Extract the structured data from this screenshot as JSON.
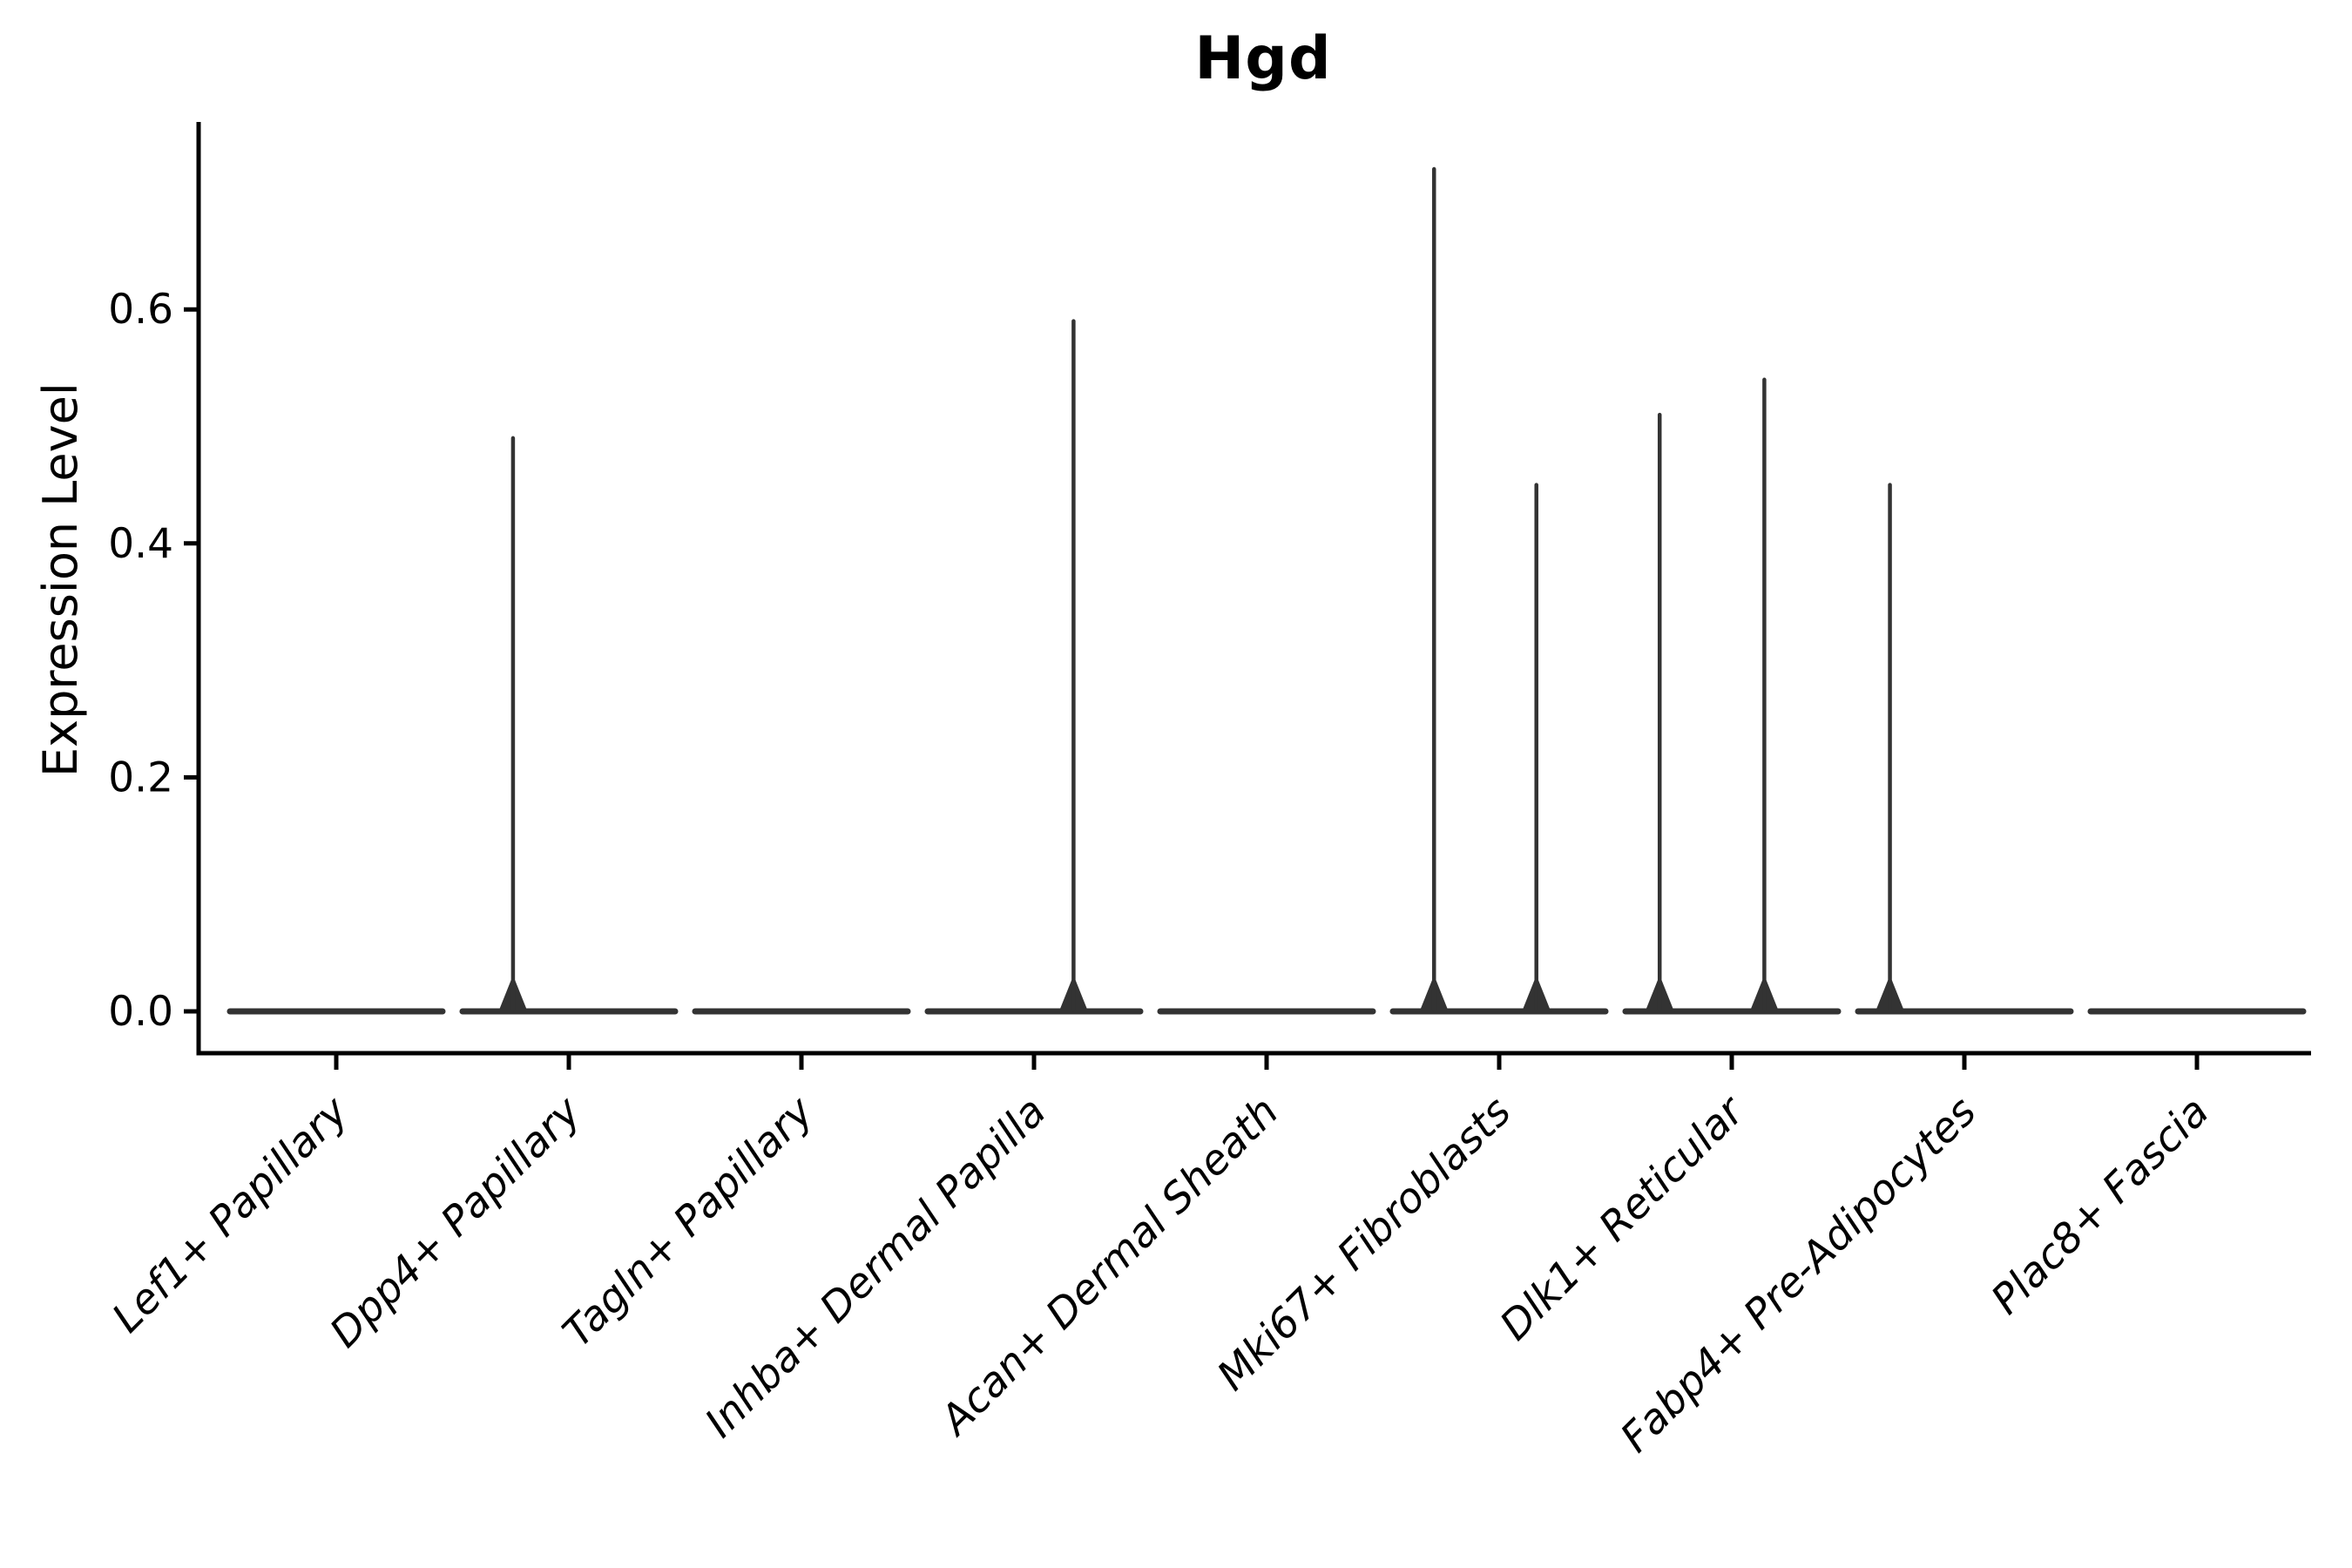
{
  "title": "Hgd",
  "y_axis": {
    "label": "Expression Level",
    "tick_labels": [
      "0.0",
      "0.2",
      "0.4",
      "0.6"
    ],
    "tick_values": [
      0.0,
      0.2,
      0.4,
      0.6
    ]
  },
  "colors": {
    "background": "#ffffff",
    "axis": "#000000",
    "text": "#000000",
    "violin": "#333333"
  },
  "chart_data": {
    "type": "violin",
    "title": "Hgd",
    "xlabel": "",
    "ylabel": "Expression Level",
    "ylim": [
      0.0,
      0.76
    ],
    "yticks": [
      0.0,
      0.2,
      0.4,
      0.6
    ],
    "grid": false,
    "legend": false,
    "categories": [
      "Lef1+ Papillary",
      "Dpp4+ Papillary",
      "Tagln+ Papillary",
      "Inhba+ Dermal Papilla",
      "Acan+ Dermal Sheath",
      "Mki67+ Fibroblasts",
      "Dlk1+ Reticular",
      "Fabp4+ Pre-Adipocytes",
      "Plac8+ Fascia"
    ],
    "description": "Violin plot of Hgd expression; every cluster is a flat violin at 0 with thin needles up to the few expressing cells' values.",
    "violins": [
      {
        "category": "Lef1+ Papillary",
        "baseline_value": 0.0,
        "spikes": []
      },
      {
        "category": "Dpp4+ Papillary",
        "baseline_value": 0.0,
        "spikes": [
          {
            "value": 0.49,
            "x_offset_frac": -0.24
          }
        ]
      },
      {
        "category": "Tagln+ Papillary",
        "baseline_value": 0.0,
        "spikes": []
      },
      {
        "category": "Inhba+ Dermal Papilla",
        "baseline_value": 0.0,
        "spikes": [
          {
            "value": 0.59,
            "x_offset_frac": 0.17
          }
        ]
      },
      {
        "category": "Acan+ Dermal Sheath",
        "baseline_value": 0.0,
        "spikes": []
      },
      {
        "category": "Mki67+ Fibroblasts",
        "baseline_value": 0.0,
        "spikes": [
          {
            "value": 0.72,
            "x_offset_frac": -0.28
          },
          {
            "value": 0.45,
            "x_offset_frac": 0.16
          }
        ]
      },
      {
        "category": "Dlk1+ Reticular",
        "baseline_value": 0.0,
        "spikes": [
          {
            "value": 0.51,
            "x_offset_frac": -0.31
          },
          {
            "value": 0.54,
            "x_offset_frac": 0.14
          }
        ]
      },
      {
        "category": "Fabp4+ Pre-Adipocytes",
        "baseline_value": 0.0,
        "spikes": [
          {
            "value": 0.45,
            "x_offset_frac": -0.32
          }
        ]
      },
      {
        "category": "Plac8+ Fascia",
        "baseline_value": 0.0,
        "spikes": []
      }
    ]
  }
}
